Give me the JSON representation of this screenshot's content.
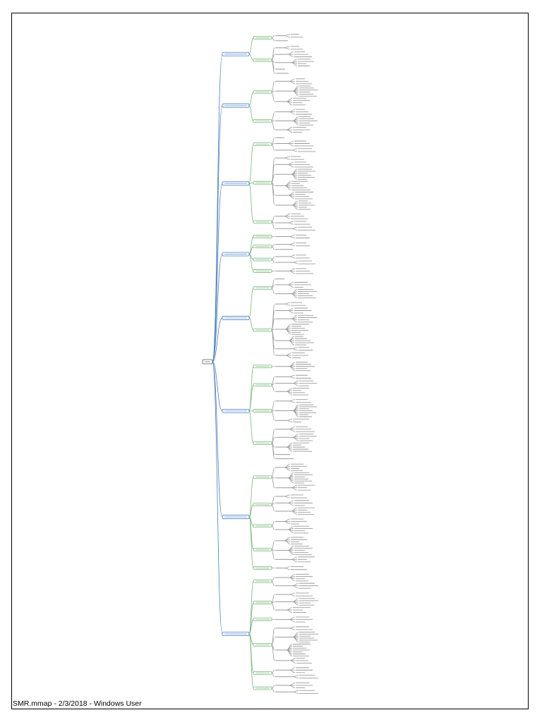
{
  "footer": {
    "text": "SMR.mmap - 2/3/2018 - Windows User"
  },
  "colors": {
    "root": "#555555",
    "branch": "#4a7dc4",
    "sub": "#7ab87a",
    "leaf": "#9a9a9a"
  },
  "mindmap": {
    "root": {
      "label": ""
    },
    "branches": [
      {
        "subs": [
          {
            "leaves": [
              2,
              1
            ]
          },
          {
            "leaves": [
              2,
              3,
              4,
              1,
              1
            ]
          }
        ]
      },
      {
        "subs": [
          {
            "leaves": [
              3,
              6,
              4
            ]
          },
          {
            "leaves": [
              3,
              5,
              3
            ]
          }
        ]
      },
      {
        "subs": [
          {
            "leaves": [
              1,
              3,
              2
            ]
          },
          {
            "leaves": [
              2,
              3,
              6,
              5,
              4,
              5
            ]
          },
          {
            "leaves": [
              3,
              2,
              2
            ]
          }
        ]
      },
      {
        "subs": [
          {
            "leaves": [
              2
            ]
          },
          {
            "leaves": [
              2,
              1
            ]
          },
          {
            "leaves": [
              2,
              2
            ]
          },
          {
            "leaves": [
              3
            ]
          }
        ]
      },
      {
        "subs": [
          {
            "leaves": [
              1,
              3,
              5
            ]
          },
          {
            "leaves": [
              2,
              3,
              4,
              6,
              5,
              2,
              3
            ]
          }
        ]
      },
      {
        "subs": [
          {
            "leaves": [
              5
            ]
          },
          {
            "leaves": [
              2,
              3,
              4
            ]
          },
          {
            "leaves": [
              2,
              7,
              2
            ]
          },
          {
            "leaves": [
              3,
              4,
              5,
              1,
              1
            ]
          }
        ]
      },
      {
        "subs": [
          {
            "leaves": [
              4,
              6,
              3
            ]
          },
          {
            "leaves": [
              2,
              3,
              4
            ]
          },
          {
            "leaves": [
              3,
              4
            ]
          },
          {
            "leaves": [
              4,
              5,
              3
            ]
          },
          {
            "leaves": [
              2
            ]
          }
        ]
      },
      {
        "subs": [
          {
            "leaves": [
              4,
              3
            ]
          },
          {
            "leaves": [
              2,
              4,
              3
            ]
          },
          {
            "leaves": [
              3
            ]
          },
          {
            "leaves": [
              2,
              6,
              7,
              3
            ]
          },
          {
            "leaves": [
              3,
              2
            ]
          },
          {
            "leaves": [
              3,
              2
            ]
          }
        ]
      }
    ]
  }
}
